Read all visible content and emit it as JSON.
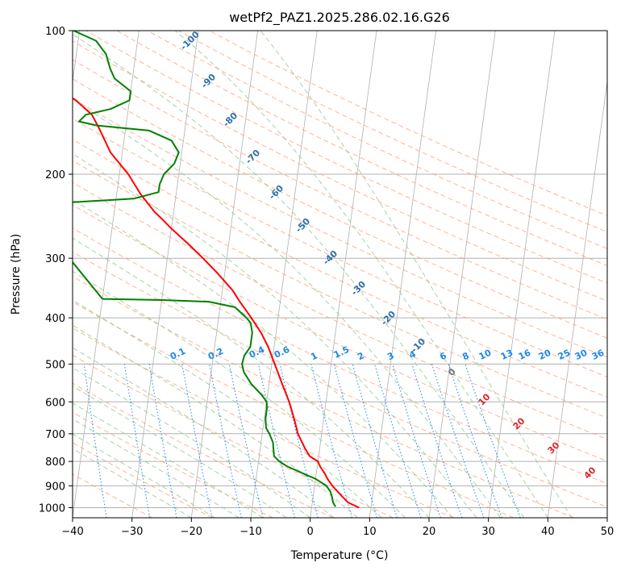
{
  "chart_data": {
    "type": "line",
    "title": "wetPf2_PAZ1.2025.286.02.16.G26",
    "xlabel": "Temperature (°C)",
    "ylabel": "Pressure (hPa)",
    "xlim": [
      -40,
      50
    ],
    "ylim": [
      1050,
      100
    ],
    "x_ticks": [
      -40,
      -30,
      -20,
      -10,
      0,
      10,
      20,
      30,
      40,
      50
    ],
    "x_tick_labels": [
      "−40",
      "−30",
      "−20",
      "−10",
      "0",
      "10",
      "20",
      "30",
      "40",
      "50"
    ],
    "y_ticks": [
      100,
      200,
      300,
      400,
      500,
      600,
      700,
      800,
      900,
      1000
    ],
    "y_tick_labels": [
      "100",
      "200",
      "300",
      "400",
      "500",
      "600",
      "700",
      "800",
      "900",
      "1000"
    ],
    "y_scale": "log",
    "grid": true,
    "colors": {
      "temperature": "#ff0000",
      "dewpoint": "#008000",
      "isotherm": "#b0b0b0",
      "dry_adiabat": "#ffa07a",
      "moist_adiabat": "#90c890",
      "mixing_ratio": "#1e88e5",
      "dry_label": "#2c6fa8",
      "moist_label": "#d62728"
    },
    "series": [
      {
        "role": "temperature",
        "values": [
          [
            1000,
            8.0
          ],
          [
            975,
            6.0
          ],
          [
            950,
            5.0
          ],
          [
            925,
            4.0
          ],
          [
            900,
            3.0
          ],
          [
            870,
            2.0
          ],
          [
            850,
            1.5
          ],
          [
            820,
            0.5
          ],
          [
            800,
            0.0
          ],
          [
            780,
            -1.5
          ],
          [
            750,
            -2.5
          ],
          [
            700,
            -4.0
          ],
          [
            650,
            -5.0
          ],
          [
            600,
            -6.2
          ],
          [
            550,
            -7.8
          ],
          [
            500,
            -9.5
          ],
          [
            460,
            -11.0
          ],
          [
            430,
            -12.5
          ],
          [
            400,
            -14.5
          ],
          [
            370,
            -16.8
          ],
          [
            350,
            -18.3
          ],
          [
            320,
            -21.5
          ],
          [
            300,
            -24.0
          ],
          [
            280,
            -26.8
          ],
          [
            260,
            -30.0
          ],
          [
            250,
            -31.5
          ],
          [
            240,
            -33.2
          ],
          [
            220,
            -36.0
          ],
          [
            200,
            -38.5
          ],
          [
            180,
            -42.0
          ],
          [
            160,
            -44.5
          ],
          [
            150,
            -46.0
          ],
          [
            140,
            -49.0
          ],
          [
            130,
            -53.5
          ],
          [
            120,
            -56.5
          ],
          [
            112,
            -58.0
          ],
          [
            105,
            -60.0
          ],
          [
            100,
            -62.0
          ]
        ]
      },
      {
        "role": "dewpoint",
        "values": [
          [
            995,
            4.0
          ],
          [
            975,
            3.5
          ],
          [
            950,
            3.2
          ],
          [
            925,
            2.8
          ],
          [
            900,
            2.0
          ],
          [
            870,
            0.0
          ],
          [
            850,
            -2.0
          ],
          [
            820,
            -5.0
          ],
          [
            800,
            -6.5
          ],
          [
            780,
            -7.5
          ],
          [
            750,
            -7.8
          ],
          [
            730,
            -8.0
          ],
          [
            700,
            -8.8
          ],
          [
            680,
            -9.5
          ],
          [
            650,
            -9.8
          ],
          [
            620,
            -9.8
          ],
          [
            600,
            -10.0
          ],
          [
            580,
            -11.0
          ],
          [
            550,
            -13.0
          ],
          [
            520,
            -14.5
          ],
          [
            500,
            -15.0
          ],
          [
            480,
            -14.8
          ],
          [
            460,
            -14.0
          ],
          [
            430,
            -14.0
          ],
          [
            410,
            -14.5
          ],
          [
            400,
            -15.3
          ],
          [
            380,
            -17.5
          ],
          [
            370,
            -22.0
          ],
          [
            367,
            -30.0
          ],
          [
            365,
            -40.0
          ],
          [
            232,
            -55.0
          ],
          [
            225,
            -37.0
          ],
          [
            218,
            -33.0
          ],
          [
            210,
            -33.0
          ],
          [
            200,
            -32.5
          ],
          [
            190,
            -31.0
          ],
          [
            180,
            -30.5
          ],
          [
            170,
            -32.0
          ],
          [
            162,
            -36.0
          ],
          [
            158,
            -45.0
          ],
          [
            155,
            -48.0
          ],
          [
            150,
            -47.0
          ],
          [
            146,
            -43.0
          ],
          [
            140,
            -40.0
          ],
          [
            134,
            -40.0
          ],
          [
            126,
            -43.0
          ],
          [
            120,
            -44.0
          ],
          [
            112,
            -45.0
          ],
          [
            105,
            -47.0
          ],
          [
            100,
            -51.0
          ]
        ]
      }
    ],
    "dry_adiabat_labels": [
      "-100",
      "-90",
      "-80",
      "-70",
      "-60",
      "-50",
      "-40",
      "-30",
      "-20",
      "-10"
    ],
    "moist_adiabat_labels": [
      "0",
      "10",
      "20",
      "30",
      "40"
    ],
    "mixing_ratio_labels": [
      "0.1",
      "0.2",
      "0.4",
      "0.6",
      "1",
      "1.5",
      "2",
      "3",
      "4",
      "6",
      "8",
      "10",
      "13",
      "16",
      "20",
      "25",
      "30",
      "36"
    ]
  }
}
